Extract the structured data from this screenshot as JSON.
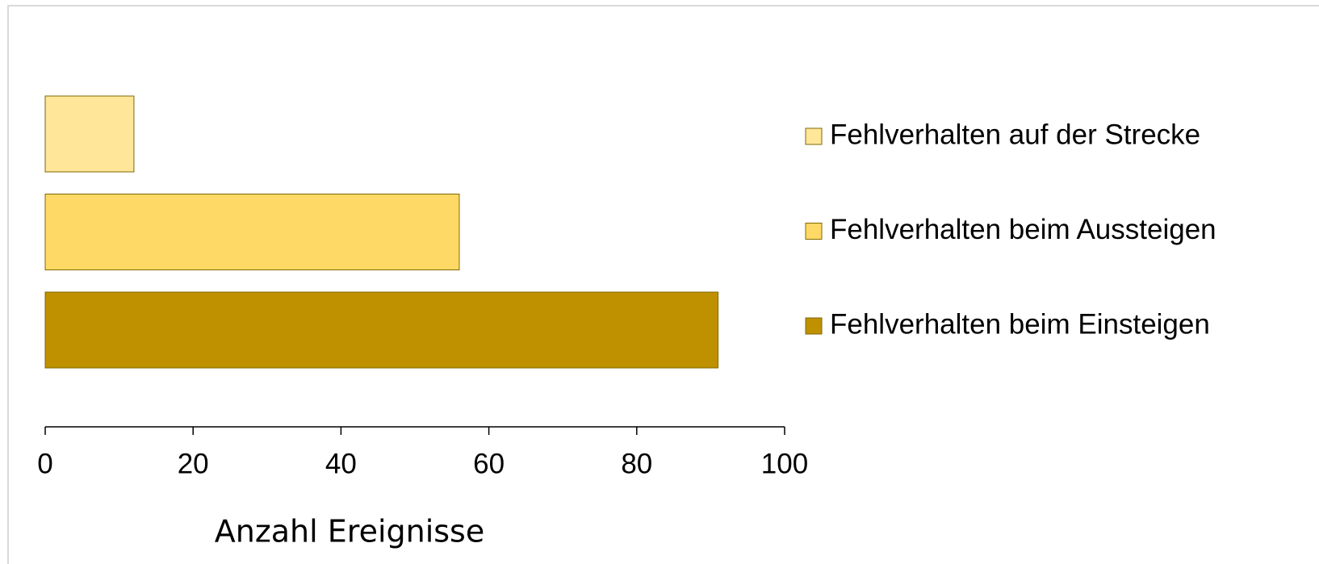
{
  "chart_data": {
    "type": "hbar",
    "categories": [
      null
    ],
    "series": [
      {
        "name": "Fehlverhalten auf der Strecke",
        "color": "#FFE699",
        "values": [
          12
        ]
      },
      {
        "name": "Fehlverhalten beim Aussteigen",
        "color": "#FFD966",
        "values": [
          56
        ]
      },
      {
        "name": "Fehlverhalten beim Einsteigen",
        "color": "#BF9000",
        "values": [
          91
        ]
      }
    ],
    "x_label": "Anzahl Ereignisse",
    "xlim": [
      0,
      100
    ],
    "xticks": [
      0,
      20,
      40,
      60,
      80,
      100
    ],
    "grid": false,
    "legend": "right"
  }
}
